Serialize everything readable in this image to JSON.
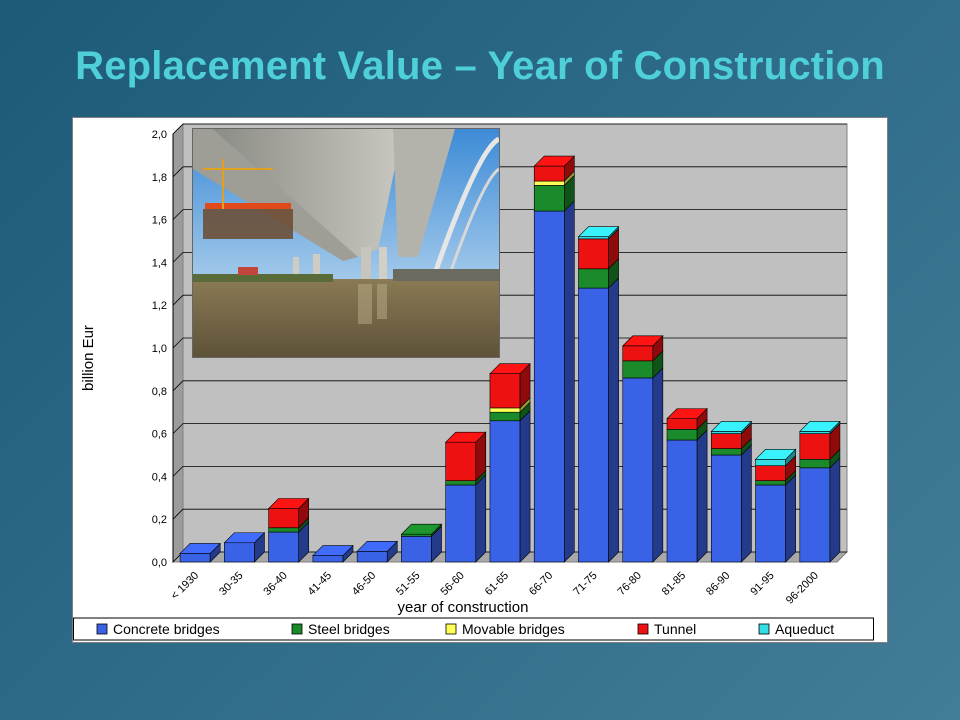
{
  "title": "Replacement Value – Year of Construction",
  "chart_data": {
    "type": "bar",
    "stacked": true,
    "three_d": true,
    "ylabel": "billion Eur",
    "xlabel": "year of construction",
    "ylim": [
      0,
      2.0
    ],
    "yticks": [
      "0,0",
      "0,2",
      "0,4",
      "0,6",
      "0,8",
      "1,0",
      "1,2",
      "1,4",
      "1,6",
      "1,8",
      "2,0"
    ],
    "categories": [
      "< 1930",
      "30-35",
      "36-40",
      "41-45",
      "46-50",
      "51-55",
      "56-60",
      "61-65",
      "66-70",
      "71-75",
      "76-80",
      "81-85",
      "86-90",
      "91-95",
      "96-2000"
    ],
    "series": [
      {
        "name": "Concrete bridges",
        "color": "#3a62e6",
        "values": [
          0.04,
          0.09,
          0.14,
          0.03,
          0.05,
          0.12,
          0.36,
          0.66,
          1.64,
          1.28,
          0.86,
          0.57,
          0.5,
          0.36,
          0.44
        ]
      },
      {
        "name": "Steel bridges",
        "color": "#1a8a2a",
        "values": [
          0.0,
          0.0,
          0.02,
          0.0,
          0.0,
          0.01,
          0.02,
          0.04,
          0.12,
          0.09,
          0.08,
          0.05,
          0.03,
          0.02,
          0.04
        ]
      },
      {
        "name": "Movable bridges",
        "color": "#ffff55",
        "values": [
          0.0,
          0.0,
          0.0,
          0.0,
          0.0,
          0.0,
          0.0,
          0.02,
          0.02,
          0.0,
          0.0,
          0.0,
          0.0,
          0.0,
          0.0
        ]
      },
      {
        "name": "Tunnel",
        "color": "#ee1111",
        "values": [
          0.0,
          0.0,
          0.09,
          0.0,
          0.0,
          0.0,
          0.18,
          0.16,
          0.07,
          0.14,
          0.07,
          0.05,
          0.07,
          0.07,
          0.12
        ]
      },
      {
        "name": "Aqueduct",
        "color": "#33dde6",
        "values": [
          0.0,
          0.0,
          0.0,
          0.0,
          0.0,
          0.0,
          0.0,
          0.0,
          0.0,
          0.01,
          0.0,
          0.0,
          0.01,
          0.03,
          0.01
        ]
      }
    ],
    "legend_position": "bottom",
    "grid": true
  }
}
